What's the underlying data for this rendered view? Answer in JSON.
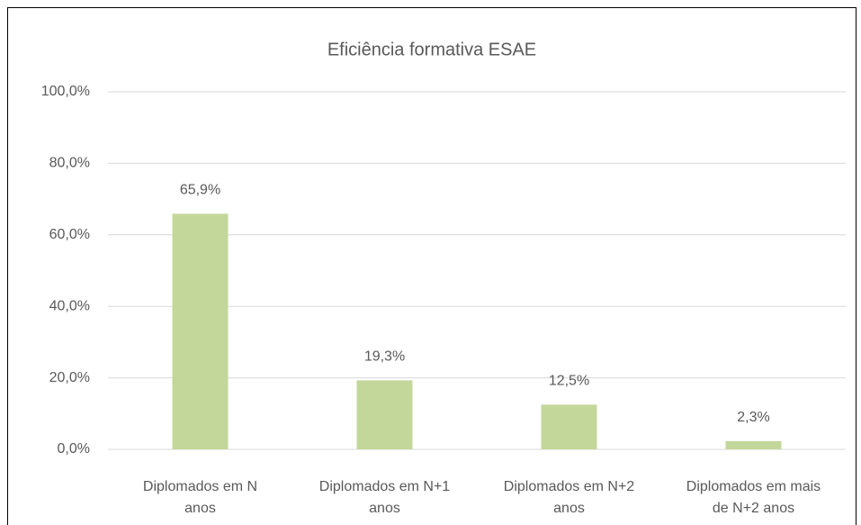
{
  "chart_data": {
    "type": "bar",
    "title": "Eficiência formativa ESAE",
    "categories": [
      "Diplomados em N anos",
      "Diplomados em N+1 anos",
      "Diplomados em N+2 anos",
      "Diplomados em mais de N+2 anos"
    ],
    "values": [
      65.9,
      19.3,
      12.5,
      2.3
    ],
    "value_labels": [
      "65,9%",
      "19,3%",
      "12,5%",
      "2,3%"
    ],
    "color": "#c4d79b",
    "ylim": [
      0,
      100
    ],
    "yticks": [
      {
        "value": 0,
        "label": "0,0%"
      },
      {
        "value": 20,
        "label": "20,0%"
      },
      {
        "value": 40,
        "label": "40,0%"
      },
      {
        "value": 60,
        "label": "60,0%"
      },
      {
        "value": 80,
        "label": "80,0%"
      },
      {
        "value": 100,
        "label": "100,0%"
      }
    ],
    "grid": true
  }
}
